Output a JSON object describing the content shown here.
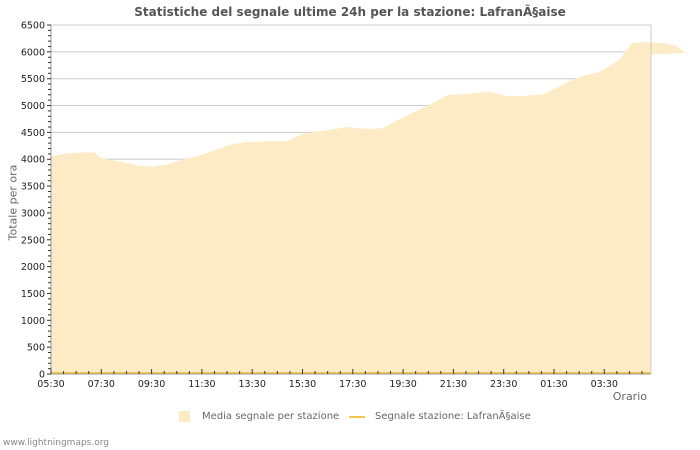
{
  "title": "Statistiche del segnale ultime 24h per la stazione: LafranÃ§aise",
  "credit": "www.lightningmaps.org",
  "colors": {
    "area": "#fdebc6",
    "line": "#f2c84b",
    "grid": "#cccccc",
    "axis": "#999999"
  },
  "chart_data": {
    "type": "area",
    "title": "Statistiche del segnale ultime 24h per la stazione: LafranÃ§aise",
    "xlabel": "Orario",
    "ylabel": "Totale per ora",
    "ylim": [
      0,
      6500
    ],
    "yticks": [
      0,
      500,
      1000,
      1500,
      2000,
      2500,
      3000,
      3500,
      4000,
      4500,
      5000,
      5500,
      6000,
      6500
    ],
    "xtick_labels": [
      "05:30",
      "07:30",
      "09:30",
      "11:30",
      "13:30",
      "15:30",
      "17:30",
      "19:30",
      "21:30",
      "23:30",
      "01:30",
      "03:30"
    ],
    "grid": true,
    "legend_position": "bottom",
    "x_hours_from_start": [
      0,
      0.5,
      1.2,
      1.75,
      2,
      2.8,
      3.5,
      4,
      4.6,
      5.3,
      6,
      7.2,
      7.8,
      8.6,
      9.4,
      10,
      10.4,
      11.8,
      12.6,
      13.2,
      14,
      15.2,
      15.8,
      16.4,
      17.4,
      18.2,
      18.8,
      19.6,
      20.6,
      21.2,
      21.8,
      22.6,
      23.1,
      23.8
    ],
    "series": [
      {
        "name": "Media segnale per stazione",
        "style": "area",
        "values": [
          4050,
          4100,
          4130,
          4120,
          4020,
          3950,
          3880,
          3860,
          3900,
          4000,
          4080,
          4280,
          4320,
          4330,
          4340,
          4470,
          4500,
          4600,
          4560,
          4580,
          4780,
          5050,
          5200,
          5210,
          5260,
          5170,
          5180,
          5210,
          5450,
          5560,
          5620,
          5850,
          6170,
          6180
        ]
      },
      {
        "name": "Segnale stazione: LafranÃ§aise",
        "style": "line",
        "values": [
          0,
          0,
          0,
          0,
          0,
          0,
          0,
          0,
          0,
          0,
          0,
          0,
          0,
          0,
          0,
          0,
          0,
          0,
          0,
          0,
          0,
          0,
          0,
          0,
          0,
          0,
          0,
          0,
          0,
          0,
          0,
          0,
          0,
          0
        ]
      }
    ]
  },
  "legend": {
    "items": [
      {
        "label": "Media segnale per stazione"
      },
      {
        "label": "Segnale stazione: LafranÃ§aise"
      }
    ]
  }
}
